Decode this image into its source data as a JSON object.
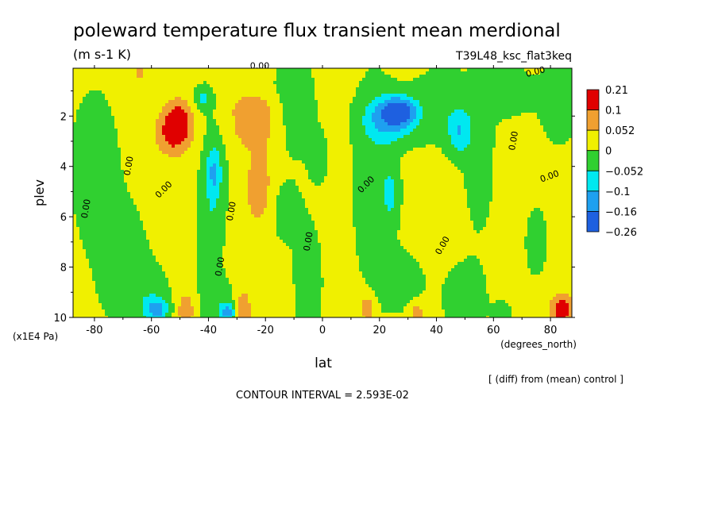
{
  "chart_data": {
    "type": "heatmap",
    "title": "poleward temperature flux transient mean merdional",
    "subtitle": "(m s-1 K)",
    "run_label": "T39L48_ksc_flat3keq",
    "xlabel": "lat",
    "x_unit": "(degrees_north)",
    "ylabel": "plev",
    "y_unit": "(x1E4 Pa)",
    "x_ticks": [
      "-80",
      "-60",
      "-40",
      "-20",
      "0",
      "20",
      "40",
      "60",
      "80"
    ],
    "x_tick_values": [
      -80,
      -60,
      -40,
      -20,
      0,
      20,
      40,
      60,
      80
    ],
    "y_ticks": [
      "2",
      "4",
      "6",
      "8",
      "10"
    ],
    "y_tick_values": [
      2,
      4,
      6,
      8,
      10
    ],
    "xlim": [
      -87.5,
      87.5
    ],
    "ylim": [
      10,
      0.1
    ],
    "y_inverted": true,
    "note": "[ (diff) from (mean) control ]",
    "contour_interval": "CONTOUR INTERVAL = 2.593E-02",
    "contour_label": "0.00",
    "legend": {
      "placement": "right",
      "boundaries": [
        "0.21",
        "0.1",
        "0.052",
        "0",
        "−0.052",
        "−0.1",
        "−0.16",
        "−0.26"
      ],
      "colors": [
        "#e00000",
        "#f0a030",
        "#f0f000",
        "#30d030",
        "#00e8f0",
        "#1ea0f0",
        "#1e60e0"
      ]
    },
    "palette": {
      "strong_pos": "#e00000",
      "pos": "#f0a030",
      "weak_pos": "#f0f000",
      "weak_neg": "#30d030",
      "neg": "#00e8f0",
      "strong_neg": "#1ea0f0",
      "vstrong_neg": "#1e60e0"
    },
    "background_value": 0.02,
    "blobs": [
      {
        "lat": -80,
        "p": 4.0,
        "dlat": 9,
        "dp": 3.2,
        "v": -0.05
      },
      {
        "lat": -70,
        "p": 7.8,
        "dlat": 9,
        "dp": 2.4,
        "v": -0.05
      },
      {
        "lat": -62,
        "p": 9.2,
        "dlat": 10,
        "dp": 1.4,
        "v": -0.04
      },
      {
        "lat": -58,
        "p": 9.7,
        "dlat": 4,
        "dp": 0.5,
        "v": -0.12
      },
      {
        "lat": -52,
        "p": 2.6,
        "dlat": 6,
        "dp": 0.9,
        "v": 0.12
      },
      {
        "lat": -50,
        "p": 2.0,
        "dlat": 4,
        "dp": 0.7,
        "v": 0.06
      },
      {
        "lat": -48,
        "p": 9.7,
        "dlat": 3,
        "dp": 0.7,
        "v": 0.08
      },
      {
        "lat": -42,
        "p": 1.3,
        "dlat": 3,
        "dp": 0.5,
        "v": -0.08
      },
      {
        "lat": -38,
        "p": 4.5,
        "dlat": 5,
        "dp": 2.8,
        "v": -0.05
      },
      {
        "lat": -38,
        "p": 4.2,
        "dlat": 2.5,
        "dp": 0.9,
        "v": -0.08
      },
      {
        "lat": -40,
        "p": 7.0,
        "dlat": 4,
        "dp": 2.5,
        "v": -0.04
      },
      {
        "lat": -36,
        "p": 9.5,
        "dlat": 7,
        "dp": 1.2,
        "v": -0.04
      },
      {
        "lat": -33,
        "p": 9.8,
        "dlat": 3,
        "dp": 0.4,
        "v": -0.12
      },
      {
        "lat": -24,
        "p": 2.4,
        "dlat": 9,
        "dp": 0.9,
        "v": 0.06
      },
      {
        "lat": -24,
        "p": 1.6,
        "dlat": 8,
        "dp": 0.5,
        "v": 0.04
      },
      {
        "lat": -22,
        "p": 4.9,
        "dlat": 5,
        "dp": 1.6,
        "v": 0.065
      },
      {
        "lat": -28,
        "p": 9.7,
        "dlat": 3,
        "dp": 0.8,
        "v": 0.08
      },
      {
        "lat": -10,
        "p": 1.5,
        "dlat": 8,
        "dp": 2.2,
        "v": -0.05
      },
      {
        "lat": -14,
        "p": 5.8,
        "dlat": 6,
        "dp": 1.3,
        "v": -0.04
      },
      {
        "lat": -5,
        "p": 8.6,
        "dlat": 6,
        "dp": 2.8,
        "v": -0.04
      },
      {
        "lat": -1,
        "p": 3.7,
        "dlat": 4,
        "dp": 1.2,
        "v": -0.03
      },
      {
        "lat": 18,
        "p": 4.5,
        "dlat": 8,
        "dp": 4.5,
        "v": -0.05
      },
      {
        "lat": 24,
        "p": 2.1,
        "dlat": 9,
        "dp": 0.9,
        "v": -0.13
      },
      {
        "lat": 27,
        "p": 1.8,
        "dlat": 5,
        "dp": 0.45,
        "v": -0.18
      },
      {
        "lat": 24,
        "p": 5.1,
        "dlat": 3,
        "dp": 1.1,
        "v": -0.06
      },
      {
        "lat": 28,
        "p": 8.6,
        "dlat": 9,
        "dp": 1.3,
        "v": -0.04
      },
      {
        "lat": 12,
        "p": 9.2,
        "dlat": 4,
        "dp": 0.6,
        "v": 0.025
      },
      {
        "lat": 16,
        "p": 9.7,
        "dlat": 2.5,
        "dp": 0.5,
        "v": 0.08
      },
      {
        "lat": 33,
        "p": 9.8,
        "dlat": 2.5,
        "dp": 0.4,
        "v": 0.08
      },
      {
        "lat": 42,
        "p": 1.6,
        "dlat": 12,
        "dp": 1.6,
        "v": -0.05
      },
      {
        "lat": 48,
        "p": 2.7,
        "dlat": 4,
        "dp": 0.9,
        "v": -0.09
      },
      {
        "lat": 55,
        "p": 4.0,
        "dlat": 6,
        "dp": 3.0,
        "v": -0.04
      },
      {
        "lat": 50,
        "p": 9.3,
        "dlat": 8,
        "dp": 1.5,
        "v": -0.05
      },
      {
        "lat": 65,
        "p": 1.0,
        "dlat": 9,
        "dp": 1.1,
        "v": -0.045
      },
      {
        "lat": 83,
        "p": 1.5,
        "dlat": 8,
        "dp": 2.0,
        "v": -0.04
      },
      {
        "lat": 75,
        "p": 7.0,
        "dlat": 5,
        "dp": 1.8,
        "v": -0.035
      },
      {
        "lat": 84,
        "p": 9.7,
        "dlat": 4,
        "dp": 0.6,
        "v": 0.12
      },
      {
        "lat": 63,
        "p": 9.8,
        "dlat": 3,
        "dp": 0.4,
        "v": -0.06
      },
      {
        "lat": -64,
        "p": 0.3,
        "dlat": 2,
        "dp": 0.3,
        "v": 0.06
      }
    ]
  }
}
